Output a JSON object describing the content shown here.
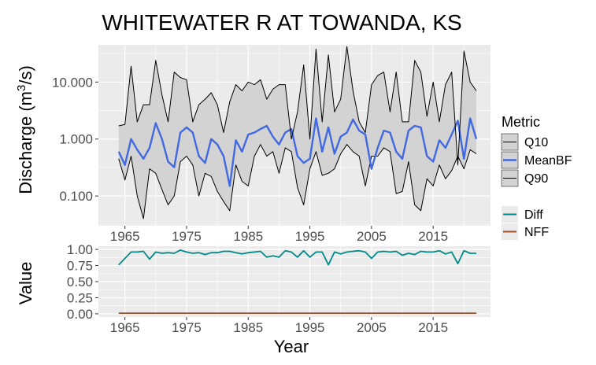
{
  "chart_data": [
    {
      "type": "line",
      "title": "WHITEWATER R AT TOWANDA, KS",
      "xlabel": "",
      "ylabel": "Discharge (m",
      "ylabel_sup": "3",
      "ylabel_tail": "/s)",
      "y_scale": "log",
      "xlim": [
        1960.7,
        2024.3
      ],
      "ylim": [
        0.03,
        45
      ],
      "x_ticks": [
        1965,
        1975,
        1985,
        1995,
        2005,
        2015
      ],
      "x_tick_labels": [
        "1965",
        "1975",
        "1985",
        "1995",
        "2005",
        "2015"
      ],
      "y_ticks": [
        0.1,
        1,
        10
      ],
      "y_tick_labels": [
        "0.100",
        "1.000",
        "10.000"
      ],
      "grid": true,
      "legend_position": "right",
      "legend": {
        "title": "Metric",
        "entries": [
          {
            "name": "Q10",
            "color": "#000000"
          },
          {
            "name": "MeanBF",
            "color": "#4169e1"
          },
          {
            "name": "Q90",
            "color": "#000000"
          }
        ]
      },
      "ribbon_color": "#d3d3d3",
      "x": [
        1964,
        1965,
        1966,
        1967,
        1968,
        1969,
        1970,
        1971,
        1972,
        1973,
        1974,
        1975,
        1976,
        1977,
        1978,
        1979,
        1980,
        1981,
        1982,
        1983,
        1984,
        1985,
        1986,
        1987,
        1988,
        1989,
        1990,
        1991,
        1992,
        1993,
        1994,
        1995,
        1996,
        1997,
        1998,
        1999,
        2000,
        2001,
        2002,
        2003,
        2004,
        2005,
        2006,
        2007,
        2008,
        2009,
        2010,
        2011,
        2012,
        2013,
        2014,
        2015,
        2016,
        2017,
        2018,
        2019,
        2020,
        2021,
        2022
      ],
      "series": [
        {
          "name": "Q10",
          "values": [
            0.45,
            0.19,
            0.5,
            0.1,
            0.04,
            0.3,
            0.25,
            0.13,
            0.07,
            0.1,
            0.4,
            0.5,
            0.35,
            0.1,
            0.25,
            0.22,
            0.12,
            0.08,
            0.055,
            0.35,
            0.18,
            0.15,
            0.5,
            0.8,
            0.5,
            0.6,
            0.25,
            0.7,
            0.6,
            0.14,
            0.07,
            0.3,
            0.6,
            0.23,
            0.25,
            0.3,
            0.55,
            0.8,
            0.6,
            0.5,
            0.15,
            0.5,
            0.5,
            0.7,
            0.6,
            0.11,
            0.12,
            0.4,
            0.07,
            0.055,
            0.2,
            0.15,
            0.35,
            0.2,
            0.28,
            0.5,
            0.3,
            0.65,
            0.55
          ]
        },
        {
          "name": "MeanBF",
          "values": [
            0.6,
            0.35,
            1.0,
            0.65,
            0.45,
            0.7,
            1.9,
            1.0,
            0.4,
            0.32,
            1.3,
            1.6,
            1.3,
            0.5,
            0.38,
            1.0,
            0.8,
            0.5,
            0.15,
            0.95,
            0.6,
            1.2,
            1.3,
            1.5,
            1.7,
            1.1,
            0.8,
            1.3,
            1.5,
            0.5,
            0.38,
            0.45,
            2.3,
            0.6,
            1.6,
            0.55,
            1.1,
            1.3,
            2.2,
            1.4,
            1.2,
            0.3,
            0.7,
            1.4,
            1.3,
            0.6,
            0.45,
            1.4,
            1.7,
            1.6,
            0.5,
            0.4,
            0.95,
            0.7,
            1.2,
            2.1,
            0.45,
            2.3,
            1.0
          ]
        },
        {
          "name": "Q90",
          "values": [
            1.7,
            1.8,
            19,
            2,
            4,
            4,
            24,
            6,
            2,
            15,
            12,
            11,
            2,
            4,
            5,
            6.5,
            4,
            1.3,
            4.5,
            9,
            7,
            10,
            9,
            11,
            5,
            7.5,
            9,
            9,
            1,
            3,
            20,
            1,
            38,
            2,
            30,
            3,
            5,
            42,
            7,
            2,
            1.3,
            9,
            13,
            15,
            3,
            15,
            2,
            2,
            24,
            15,
            2.5,
            10,
            2,
            9,
            15,
            0.35,
            35,
            10,
            7
          ]
        }
      ]
    },
    {
      "type": "line",
      "xlabel": "Year",
      "ylabel": "Value",
      "xlim": [
        1960.7,
        2024.3
      ],
      "ylim": [
        -0.05,
        1.05
      ],
      "x_ticks": [
        1965,
        1975,
        1985,
        1995,
        2005,
        2015
      ],
      "x_tick_labels": [
        "1965",
        "1975",
        "1985",
        "1995",
        "2005",
        "2015"
      ],
      "y_ticks": [
        0,
        0.25,
        0.5,
        0.75,
        1.0
      ],
      "y_tick_labels": [
        "0.00",
        "0.25",
        "0.50",
        "0.75",
        "1.00"
      ],
      "grid": true,
      "legend_position": "right",
      "legend": {
        "entries": [
          {
            "name": "Diff",
            "color": "#008b8b"
          },
          {
            "name": "NFF",
            "color": "#a0522d"
          }
        ]
      },
      "x": [
        1964,
        1965,
        1966,
        1967,
        1968,
        1969,
        1970,
        1971,
        1972,
        1973,
        1974,
        1975,
        1976,
        1977,
        1978,
        1979,
        1980,
        1981,
        1982,
        1983,
        1984,
        1985,
        1986,
        1987,
        1988,
        1989,
        1990,
        1991,
        1992,
        1993,
        1994,
        1995,
        1996,
        1997,
        1998,
        1999,
        2000,
        2001,
        2002,
        2003,
        2004,
        2005,
        2006,
        2007,
        2008,
        2009,
        2010,
        2011,
        2012,
        2013,
        2014,
        2015,
        2016,
        2017,
        2018,
        2019,
        2020,
        2021,
        2022
      ],
      "series": [
        {
          "name": "Diff",
          "values": [
            0.76,
            0.86,
            0.96,
            0.96,
            0.97,
            0.85,
            0.96,
            0.94,
            0.95,
            0.94,
            0.99,
            0.96,
            0.94,
            0.95,
            0.92,
            0.95,
            0.95,
            0.97,
            0.97,
            0.95,
            0.93,
            0.95,
            0.96,
            0.97,
            0.88,
            0.9,
            0.88,
            0.98,
            0.96,
            0.88,
            0.98,
            0.88,
            0.96,
            0.96,
            0.76,
            0.96,
            0.93,
            0.96,
            0.97,
            0.98,
            0.96,
            0.86,
            0.96,
            0.97,
            0.96,
            0.97,
            0.91,
            0.94,
            0.92,
            0.97,
            0.96,
            0.96,
            0.98,
            0.93,
            0.96,
            0.78,
            0.98,
            0.94,
            0.94
          ]
        },
        {
          "name": "NFF",
          "values": [
            0.01,
            0.01,
            0.01,
            0.01,
            0.01,
            0.01,
            0.01,
            0.01,
            0.01,
            0.01,
            0.01,
            0.01,
            0.01,
            0.01,
            0.01,
            0.01,
            0.01,
            0.01,
            0.01,
            0.01,
            0.01,
            0.01,
            0.01,
            0.01,
            0.01,
            0.01,
            0.01,
            0.01,
            0.01,
            0.01,
            0.01,
            0.01,
            0.01,
            0.01,
            0.01,
            0.01,
            0.01,
            0.01,
            0.01,
            0.01,
            0.01,
            0.01,
            0.01,
            0.01,
            0.01,
            0.01,
            0.01,
            0.01,
            0.01,
            0.01,
            0.01,
            0.01,
            0.01,
            0.01,
            0.01,
            0.01,
            0.01,
            0.01,
            0.01
          ]
        }
      ]
    }
  ]
}
